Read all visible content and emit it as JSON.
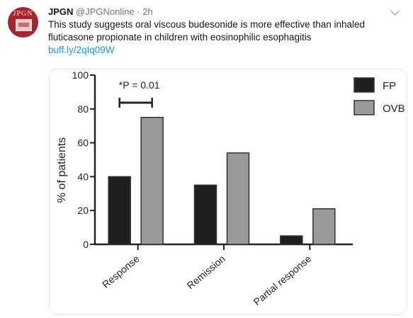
{
  "tweet": {
    "name": "JPGN",
    "handle": "@JPGNonline",
    "separator": "·",
    "time": "2h",
    "text": "This study suggests oral viscous budesonide is more effective than inhaled fluticasone propionate in children with eosinophilic esophagitis",
    "link": "buff.ly/2qIq09W",
    "avatar_text": "JPGN"
  },
  "chart_data": {
    "type": "bar",
    "categories": [
      "Response",
      "Remission",
      "Partial response"
    ],
    "series": [
      {
        "name": "FP",
        "values": [
          40,
          35,
          5
        ],
        "color": "#1e1e1e"
      },
      {
        "name": "OVB",
        "values": [
          75,
          54,
          21
        ],
        "color": "#9a9a9a"
      }
    ],
    "ylabel": "% of patients",
    "ylim": [
      0,
      100
    ],
    "yticks": [
      0,
      20,
      40,
      60,
      80,
      100
    ],
    "legend_position": "top-right",
    "annotation": {
      "text": "*P = 0.01",
      "category": "Response"
    }
  }
}
